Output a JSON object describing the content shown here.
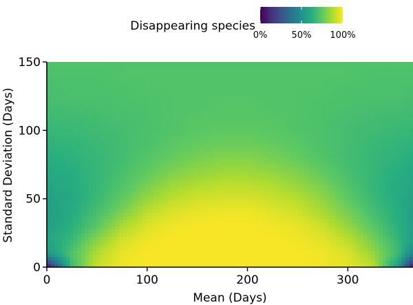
{
  "chart_data": {
    "type": "heatmap",
    "title": "",
    "xlabel": "Mean (Days)",
    "ylabel": "Standard Deviation (Days)",
    "xlim": [
      0,
      365
    ],
    "ylim": [
      0,
      150
    ],
    "x_ticks": [
      0,
      100,
      200,
      300
    ],
    "y_ticks": [
      0,
      50,
      100,
      150
    ],
    "colorscale": "viridis",
    "legend": {
      "title": "Disappearing species",
      "position": "top",
      "range": [
        0,
        100
      ],
      "ticks": [
        {
          "value": 0,
          "label": "0%"
        },
        {
          "value": 50,
          "label": "50%"
        },
        {
          "value": 100,
          "label": "100%"
        }
      ]
    },
    "z_unit": "%",
    "z_range": [
      0,
      100
    ],
    "z_grid": {
      "x": [
        0,
        25,
        50,
        75,
        100,
        125,
        150,
        175,
        200,
        225,
        250,
        275,
        300,
        325,
        350,
        365
      ],
      "y": [
        0,
        10,
        20,
        30,
        40,
        50,
        60,
        70,
        80,
        90,
        100,
        110,
        120,
        130,
        140,
        150
      ],
      "z": [
        [
          2,
          68,
          92,
          98,
          99,
          99,
          99,
          99,
          99,
          99,
          99,
          98,
          96,
          90,
          55,
          2
        ],
        [
          52,
          72,
          88,
          97,
          99,
          99,
          99,
          99,
          99,
          99,
          99,
          98,
          95,
          84,
          68,
          45
        ],
        [
          58,
          67,
          82,
          93,
          98,
          99,
          99,
          99,
          99,
          99,
          98,
          96,
          90,
          79,
          66,
          56
        ],
        [
          56,
          63,
          74,
          87,
          95,
          98,
          99,
          99,
          99,
          98,
          97,
          92,
          84,
          74,
          63,
          56
        ],
        [
          55,
          61,
          70,
          80,
          90,
          95,
          97,
          98,
          98,
          96,
          93,
          87,
          79,
          70,
          62,
          56
        ],
        [
          56,
          60,
          67,
          75,
          84,
          90,
          93,
          94,
          94,
          92,
          89,
          83,
          75,
          67,
          61,
          57
        ],
        [
          58,
          61,
          66,
          72,
          79,
          85,
          88,
          90,
          90,
          88,
          84,
          79,
          72,
          66,
          61,
          59
        ],
        [
          60,
          62,
          66,
          70,
          75,
          80,
          83,
          85,
          85,
          83,
          80,
          75,
          70,
          66,
          62,
          60
        ],
        [
          62,
          64,
          66,
          69,
          73,
          76,
          79,
          81,
          81,
          79,
          76,
          72,
          69,
          66,
          64,
          62
        ],
        [
          64,
          65,
          67,
          69,
          71,
          74,
          76,
          77,
          77,
          76,
          74,
          71,
          69,
          67,
          65,
          64
        ],
        [
          66,
          67,
          68,
          69,
          71,
          72,
          74,
          75,
          75,
          74,
          72,
          71,
          69,
          68,
          67,
          66
        ],
        [
          68,
          68,
          69,
          70,
          71,
          72,
          73,
          73,
          73,
          73,
          72,
          71,
          70,
          69,
          68,
          68
        ],
        [
          69,
          70,
          70,
          71,
          71,
          72,
          72,
          73,
          73,
          72,
          72,
          71,
          71,
          70,
          70,
          69
        ],
        [
          70,
          71,
          71,
          71,
          72,
          72,
          72,
          72,
          72,
          72,
          72,
          72,
          71,
          71,
          71,
          70
        ],
        [
          71,
          71,
          71,
          72,
          72,
          72,
          72,
          72,
          72,
          72,
          72,
          72,
          72,
          71,
          71,
          71
        ],
        [
          72,
          72,
          72,
          72,
          72,
          72,
          72,
          72,
          72,
          72,
          72,
          72,
          72,
          72,
          72,
          72
        ]
      ]
    }
  }
}
